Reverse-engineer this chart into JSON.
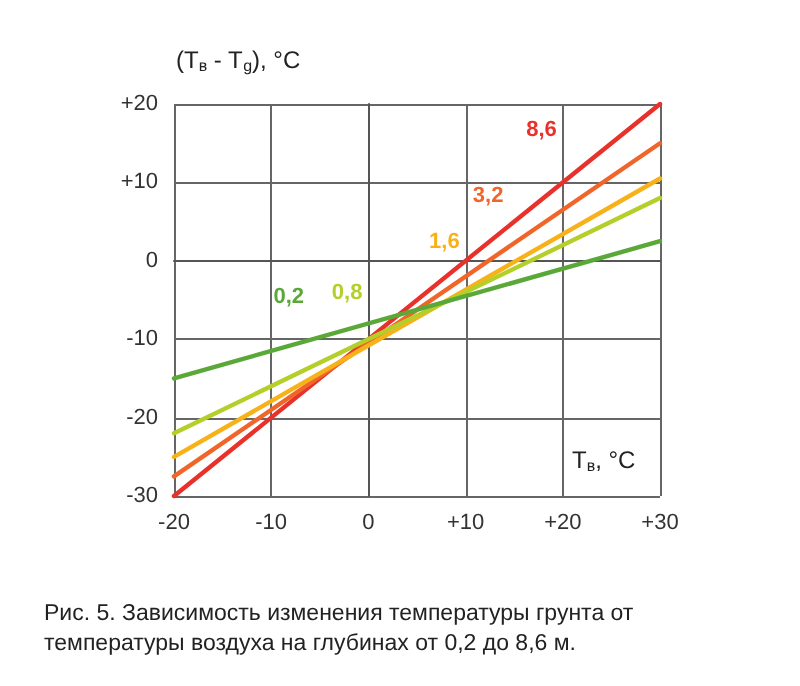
{
  "chart_data": {
    "type": "line",
    "ylabel": "(T$_{в}$ - T$_{g}$), °C",
    "xlabel": "T$_{в}$, °C",
    "annotations": [
      "Рис. 5. Зависимость изменения температуры грунта от температуры воздуха на глубинах от 0,2 до 8,6 м."
    ],
    "x": [
      -20,
      30
    ],
    "xlim": [
      -20,
      30
    ],
    "xticks": [
      -20,
      -10,
      0,
      {
        "value": 10,
        "label": "+10"
      },
      {
        "value": 20,
        "label": "+20"
      },
      {
        "value": 30,
        "label": "+30"
      }
    ],
    "ylim": [
      -30,
      20
    ],
    "yticks": [
      -30,
      -20,
      -10,
      0,
      {
        "value": 10,
        "label": "+10"
      },
      {
        "value": 20,
        "label": "+20"
      }
    ],
    "grid": true,
    "marker": "none",
    "line_style": "solid",
    "series": [
      {
        "name": "8,6",
        "color": "#e8312a",
        "values": [
          -30,
          20
        ]
      },
      {
        "name": "3,2",
        "color": "#f0652a",
        "values": [
          -27.5,
          15
        ]
      },
      {
        "name": "1,6",
        "color": "#f7b21a",
        "values": [
          -25,
          10.5
        ]
      },
      {
        "name": "0,8",
        "color": "#b5cf2a",
        "values": [
          -22,
          8
        ]
      },
      {
        "name": "0,2",
        "color": "#5aa838",
        "values": [
          -15,
          2.5
        ]
      }
    ]
  }
}
